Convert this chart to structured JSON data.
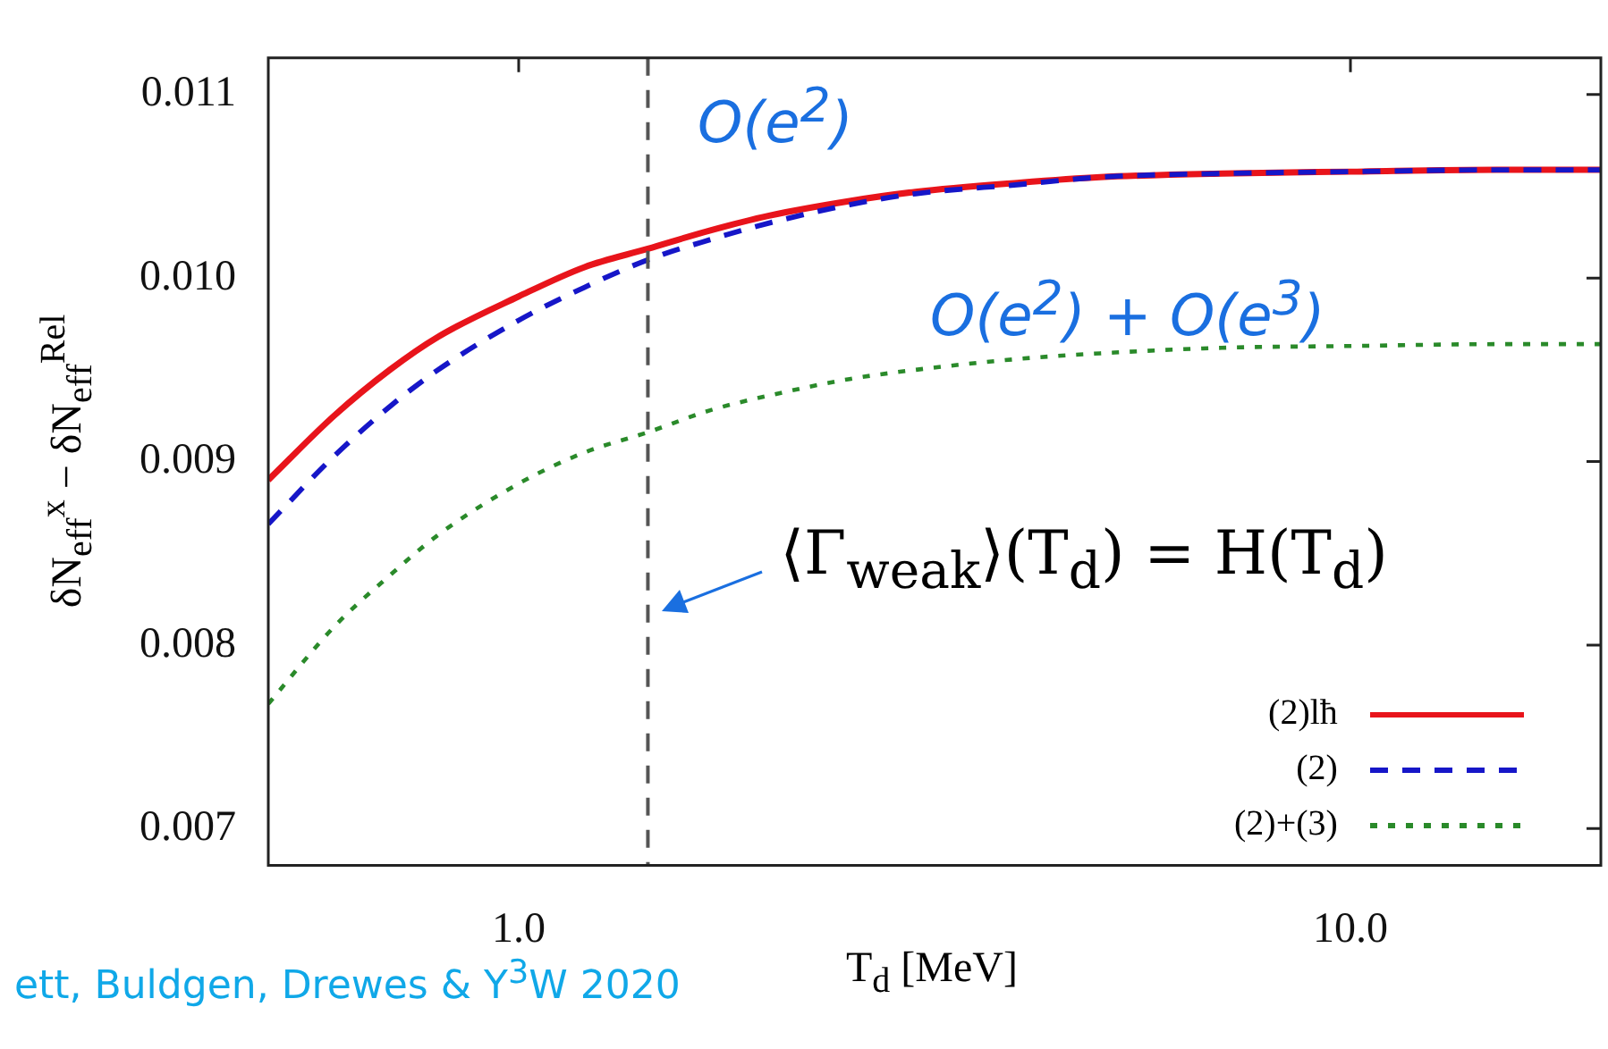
{
  "chart_data": {
    "type": "line",
    "xlabel": "T$_{d}$ [MeV]",
    "ylabel": "δN$_{eff}$$^{x}$ − δN$_{eff}$$^{Rel}$",
    "x": [
      0.5,
      0.6,
      0.7,
      0.8,
      1.0,
      1.2,
      1.43,
      1.7,
      2,
      2.5,
      3,
      4,
      5,
      7,
      10,
      15,
      20
    ],
    "series": [
      {
        "name": "(2)lħ",
        "color": "#e8141b",
        "line_style": "solid",
        "values": [
          0.0089,
          0.00925,
          0.0095,
          0.00968,
          0.0099,
          0.01006,
          0.01016,
          0.01026,
          0.01034,
          0.01042,
          0.01047,
          0.01052,
          0.01055,
          0.01057,
          0.01058,
          0.01059,
          0.01059
        ]
      },
      {
        "name": "(2)",
        "color": "#1616c8",
        "line_style": "dashed",
        "values": [
          0.00866,
          0.00903,
          0.0093,
          0.0095,
          0.00977,
          0.00995,
          0.0101,
          0.01021,
          0.0103,
          0.0104,
          0.01046,
          0.01051,
          0.01055,
          0.01057,
          0.01058,
          0.01059,
          0.01059
        ]
      },
      {
        "name": "(2)+(3)",
        "color": "#2a8a2a",
        "line_style": "dotted",
        "values": [
          0.00768,
          0.0081,
          0.00838,
          0.0086,
          0.00888,
          0.00905,
          0.00916,
          0.00928,
          0.00936,
          0.00945,
          0.0095,
          0.00956,
          0.00959,
          0.00962,
          0.00963,
          0.00964,
          0.00964
        ]
      }
    ],
    "log": "x",
    "xlim": [
      0.5,
      20
    ],
    "xticks": [
      {
        "value": 1,
        "label": "1.0"
      },
      {
        "value": 10,
        "label": "10.0"
      }
    ],
    "ylim": [
      0.0068,
      0.0112
    ],
    "yticks": [
      0.007,
      0.008,
      0.009,
      {
        "value": 0.01,
        "label": "0.010"
      },
      0.011
    ],
    "grid": false,
    "legend": "bottom right",
    "marker": "none",
    "ref_lines": [
      {
        "axis": "x",
        "value": 1.43,
        "color": "#555555",
        "line_style": "dashed"
      }
    ],
    "annotations": [
      "O(e$^{2}$)",
      "O(e$^{2}$) + O(e$^{3}$)",
      {
        "text": "⟨Γ$_{weak}$⟩(T$_{d}$) = H(T$_{d}$)",
        "x": 1.43,
        "y": 0.0082
      },
      "ett, Buldgen, Drewes & Y$^{3}$W 2020"
    ]
  }
}
